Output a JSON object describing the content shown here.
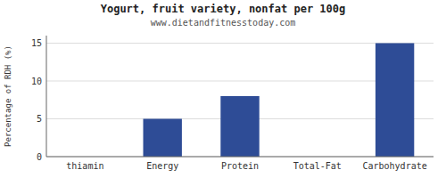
{
  "chart_data": {
    "type": "bar",
    "title": "Yogurt, fruit variety, nonfat per 100g",
    "subtitle": "www.dietandfitnesstoday.com",
    "categories": [
      "thiamin",
      "Energy",
      "Protein",
      "Total-Fat",
      "Carbohydrate"
    ],
    "values": [
      0,
      5,
      8,
      0,
      15
    ],
    "color": "#2e4c96",
    "ylabel": "Percentage of RDH (%)",
    "ylim": [
      0,
      16
    ],
    "yticks": [
      0,
      5,
      10,
      15
    ],
    "grid": true
  }
}
